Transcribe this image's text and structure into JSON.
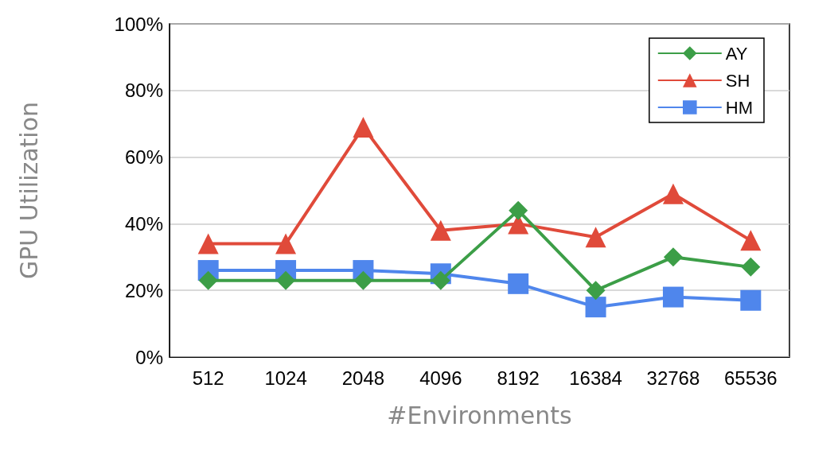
{
  "chart_data": {
    "type": "line",
    "xlabel": "#Environments",
    "ylabel": "GPU Utilization",
    "categories": [
      "512",
      "1024",
      "2048",
      "4096",
      "8192",
      "16384",
      "32768",
      "65536"
    ],
    "series": [
      {
        "name": "AY",
        "color": "#3c9e47",
        "marker": "diamond",
        "values": [
          23,
          23,
          23,
          23,
          44,
          20,
          30,
          27
        ]
      },
      {
        "name": "SH",
        "color": "#e04a3a",
        "marker": "triangle",
        "values": [
          34,
          34,
          69,
          38,
          40,
          36,
          49,
          35
        ]
      },
      {
        "name": "HM",
        "color": "#4f86ec",
        "marker": "square",
        "values": [
          26,
          26,
          26,
          25,
          22,
          15,
          18,
          17
        ]
      }
    ],
    "ylim": [
      0,
      100
    ],
    "yticks": [
      {
        "value": 0,
        "label": "0%"
      },
      {
        "value": 20,
        "label": "20%"
      },
      {
        "value": 40,
        "label": "40%"
      },
      {
        "value": 60,
        "label": "60%"
      },
      {
        "value": 80,
        "label": "80%"
      },
      {
        "value": 100,
        "label": "100%"
      }
    ],
    "grid": "y",
    "legend": "top right",
    "line_style": "solid"
  }
}
